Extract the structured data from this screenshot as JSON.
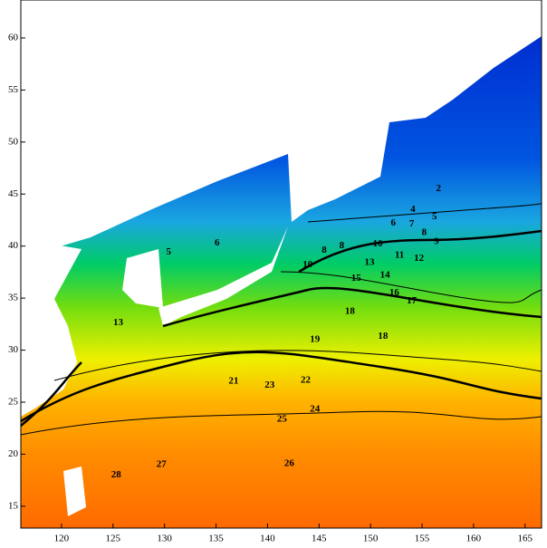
{
  "chart_data": {
    "type": "contour",
    "xlim": [
      116.05,
      166.6
    ],
    "ylim": [
      12.9,
      63.65
    ],
    "xticks": [
      120,
      125,
      130,
      135,
      140,
      145,
      150,
      155,
      160,
      165
    ],
    "yticks": [
      15,
      20,
      25,
      30,
      35,
      40,
      45,
      50,
      55,
      60
    ],
    "labels": [
      {
        "value": 28,
        "x": 125.3,
        "y": 18.0
      },
      {
        "value": 27,
        "x": 129.7,
        "y": 19.0
      },
      {
        "value": 26,
        "x": 142.1,
        "y": 19.1
      },
      {
        "value": 25,
        "x": 141.4,
        "y": 23.35
      },
      {
        "value": 24,
        "x": 144.6,
        "y": 24.3
      },
      {
        "value": 23,
        "x": 140.2,
        "y": 26.6
      },
      {
        "value": 22,
        "x": 143.7,
        "y": 27.1
      },
      {
        "value": 21,
        "x": 136.7,
        "y": 27.0
      },
      {
        "value": 19,
        "x": 144.6,
        "y": 31.0
      },
      {
        "value": 18,
        "x": 148.0,
        "y": 33.7
      },
      {
        "value": 18,
        "x": 151.2,
        "y": 31.3
      },
      {
        "value": 17,
        "x": 154.0,
        "y": 34.7
      },
      {
        "value": 16,
        "x": 152.3,
        "y": 35.5
      },
      {
        "value": 15,
        "x": 148.6,
        "y": 36.9
      },
      {
        "value": 14,
        "x": 151.4,
        "y": 37.2
      },
      {
        "value": 13,
        "x": 149.9,
        "y": 38.4
      },
      {
        "value": 13,
        "x": 125.5,
        "y": 32.6
      },
      {
        "value": 12,
        "x": 154.7,
        "y": 38.8
      },
      {
        "value": 11,
        "x": 152.8,
        "y": 39.1
      },
      {
        "value": 10,
        "x": 150.7,
        "y": 40.2
      },
      {
        "value": 10,
        "x": 143.9,
        "y": 38.2
      },
      {
        "value": 9,
        "x": 156.4,
        "y": 40.4
      },
      {
        "value": 8,
        "x": 155.2,
        "y": 41.3
      },
      {
        "value": 8,
        "x": 147.2,
        "y": 40.0
      },
      {
        "value": 8,
        "x": 145.5,
        "y": 39.6
      },
      {
        "value": 7,
        "x": 154.0,
        "y": 42.1
      },
      {
        "value": 6,
        "x": 135.1,
        "y": 40.3
      },
      {
        "value": 6,
        "x": 152.2,
        "y": 42.2
      },
      {
        "value": 5,
        "x": 130.4,
        "y": 39.4
      },
      {
        "value": 5,
        "x": 156.2,
        "y": 42.8
      },
      {
        "value": 4,
        "x": 154.1,
        "y": 43.5
      },
      {
        "value": 2,
        "x": 156.6,
        "y": 45.5
      }
    ]
  }
}
